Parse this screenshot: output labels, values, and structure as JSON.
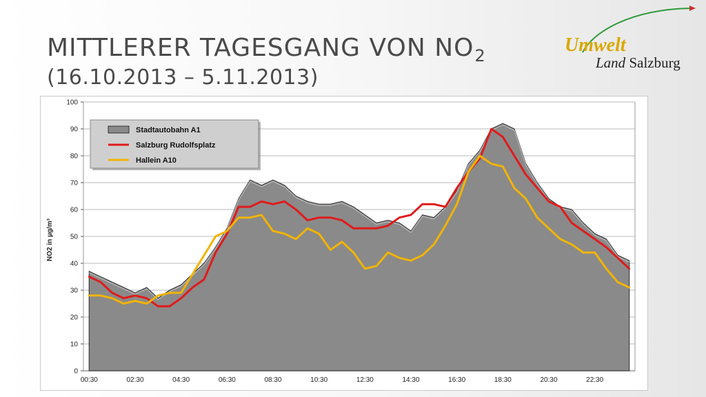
{
  "title": {
    "line1": "MITTLERER TAGESGANG VON NO",
    "subscript": "2",
    "line2": "(16.10.2013 – 5.11.2013)"
  },
  "logo": {
    "word1": "Umwelt",
    "word2_italic": "Land",
    "word3": " Salzburg"
  },
  "chart_data": {
    "type": "area",
    "ylabel": "NO2 in µg/m³",
    "xlabel": "",
    "ylim": [
      0,
      100
    ],
    "yticks": [
      0,
      10,
      20,
      30,
      40,
      50,
      60,
      70,
      80,
      90,
      100
    ],
    "xtick_labels": [
      "00:30",
      "02:30",
      "04:30",
      "06:30",
      "08:30",
      "10:30",
      "12:30",
      "14:30",
      "16:30",
      "18:30",
      "20:30",
      "22:30"
    ],
    "x": [
      "00:30",
      "01:00",
      "01:30",
      "02:00",
      "02:30",
      "03:00",
      "03:30",
      "04:00",
      "04:30",
      "05:00",
      "05:30",
      "06:00",
      "06:30",
      "07:00",
      "07:30",
      "08:00",
      "08:30",
      "09:00",
      "09:30",
      "10:00",
      "10:30",
      "11:00",
      "11:30",
      "12:00",
      "12:30",
      "13:00",
      "13:30",
      "14:00",
      "14:30",
      "15:00",
      "15:30",
      "16:00",
      "16:30",
      "17:00",
      "17:30",
      "18:00",
      "18:30",
      "19:00",
      "19:30",
      "20:00",
      "20:30",
      "21:00",
      "21:30",
      "22:00",
      "22:30",
      "23:00",
      "23:30",
      "00:00"
    ],
    "grid": true,
    "legend_position": "top-left",
    "series": [
      {
        "name": "Stadtautobahn A1",
        "style": "area",
        "color": "#8a8a8a",
        "values": [
          37,
          35,
          33,
          31,
          29,
          31,
          27,
          30,
          32,
          36,
          40,
          46,
          53,
          64,
          71,
          69,
          71,
          69,
          65,
          63,
          62,
          62,
          63,
          61,
          58,
          55,
          56,
          55,
          52,
          58,
          57,
          61,
          67,
          77,
          82,
          90,
          92,
          90,
          77,
          70,
          64,
          61,
          60,
          55,
          51,
          49,
          43,
          41
        ]
      },
      {
        "name": "Salzburg Rudolfsplatz",
        "style": "line",
        "color": "#e01b1b",
        "values": [
          35,
          33,
          29,
          27,
          28,
          27,
          24,
          24,
          27,
          31,
          34,
          44,
          51,
          61,
          61,
          63,
          62,
          63,
          60,
          56,
          57,
          57,
          56,
          53,
          53,
          53,
          54,
          57,
          58,
          62,
          62,
          61,
          68,
          74,
          79,
          90,
          87,
          80,
          73,
          68,
          63,
          61,
          55,
          52,
          49,
          46,
          42,
          38
        ]
      },
      {
        "name": "Hallein A10",
        "style": "line",
        "color": "#f2b400",
        "values": [
          28,
          28,
          27,
          25,
          26,
          25,
          28,
          29,
          29,
          36,
          43,
          50,
          52,
          57,
          57,
          58,
          52,
          51,
          49,
          53,
          51,
          45,
          48,
          44,
          38,
          39,
          44,
          42,
          41,
          43,
          47,
          54,
          62,
          74,
          80,
          77,
          76,
          68,
          64,
          57,
          53,
          49,
          47,
          44,
          44,
          38,
          33,
          31
        ]
      }
    ]
  }
}
